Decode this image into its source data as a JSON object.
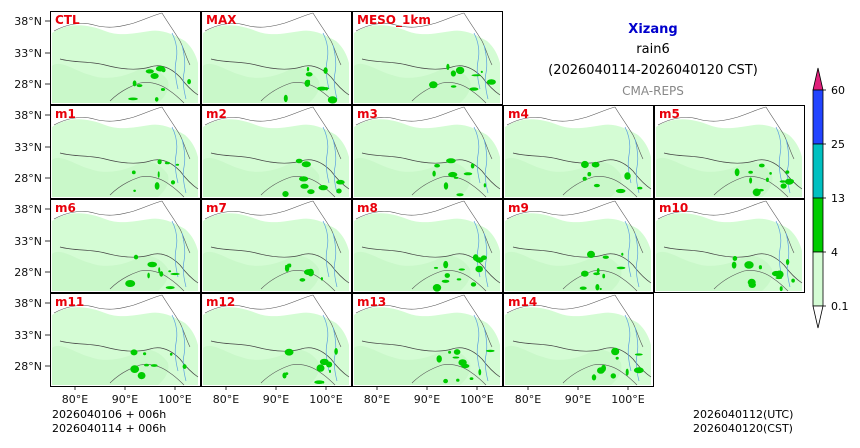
{
  "title": {
    "region": "Xizang",
    "variable": "rain6",
    "period": "(2026040114-2026040120 CST)",
    "source": "CMA-REPS"
  },
  "panels": [
    {
      "row": 0,
      "col": 0,
      "label": "CTL"
    },
    {
      "row": 0,
      "col": 1,
      "label": "MAX"
    },
    {
      "row": 0,
      "col": 2,
      "label": "MESO_1km"
    },
    {
      "row": 1,
      "col": 0,
      "label": "m1"
    },
    {
      "row": 1,
      "col": 1,
      "label": "m2"
    },
    {
      "row": 1,
      "col": 2,
      "label": "m3"
    },
    {
      "row": 1,
      "col": 3,
      "label": "m4"
    },
    {
      "row": 1,
      "col": 4,
      "label": "m5"
    },
    {
      "row": 2,
      "col": 0,
      "label": "m6"
    },
    {
      "row": 2,
      "col": 1,
      "label": "m7"
    },
    {
      "row": 2,
      "col": 2,
      "label": "m8"
    },
    {
      "row": 2,
      "col": 3,
      "label": "m9"
    },
    {
      "row": 2,
      "col": 4,
      "label": "m10"
    },
    {
      "row": 3,
      "col": 0,
      "label": "m11"
    },
    {
      "row": 3,
      "col": 1,
      "label": "m12"
    },
    {
      "row": 3,
      "col": 2,
      "label": "m13"
    },
    {
      "row": 3,
      "col": 3,
      "label": "m14"
    }
  ],
  "lat_ticks": [
    "38°N",
    "33°N",
    "28°N"
  ],
  "lon_ticks": [
    "80°E",
    "90°E",
    "100°E"
  ],
  "colorbar": {
    "levels": [
      "0.1",
      "4",
      "13",
      "25",
      "60"
    ],
    "colors": [
      "#d4fcd4",
      "#00cc00",
      "#00c0c0",
      "#2244ff",
      "#e0207a"
    ],
    "under_color": "#ffffff"
  },
  "footer": {
    "init_line": "2026040106  +  006h",
    "valid_line": "2026040114  +  006h",
    "utc": "2026040112(UTC)",
    "cst": "2026040120(CST)"
  }
}
